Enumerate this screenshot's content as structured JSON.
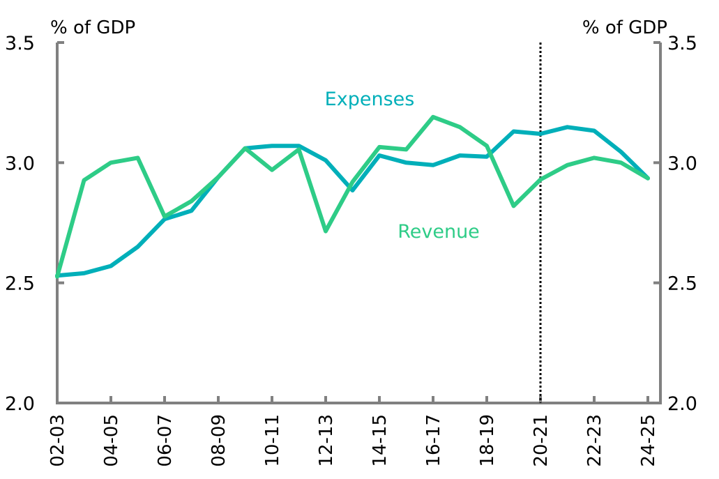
{
  "chart_data": {
    "type": "line",
    "title": "",
    "xlabel": "",
    "ylabel": "% of GDP",
    "ylabel_left": "% of GDP",
    "ylabel_right": "% of GDP",
    "ylim": [
      2.0,
      3.5
    ],
    "yticks": [
      2.0,
      2.5,
      3.0,
      3.5
    ],
    "ytick_labels": [
      "2.0",
      "2.5",
      "3.0",
      "3.5"
    ],
    "grid": false,
    "legend": "inline labels",
    "x": [
      "02-03",
      "03-04",
      "04-05",
      "05-06",
      "06-07",
      "07-08",
      "08-09",
      "09-10",
      "10-11",
      "11-12",
      "12-13",
      "13-14",
      "14-15",
      "15-16",
      "16-17",
      "17-18",
      "18-19",
      "19-20",
      "20-21",
      "21-22",
      "22-23",
      "23-24",
      "24-25"
    ],
    "xtick_labels": [
      "02-03",
      "04-05",
      "06-07",
      "08-09",
      "10-11",
      "12-13",
      "14-15",
      "16-17",
      "18-19",
      "20-21",
      "22-23",
      "24-25"
    ],
    "series": [
      {
        "name": "Expenses",
        "color": "#00AFB9",
        "values": [
          2.53,
          2.54,
          2.57,
          2.65,
          2.765,
          2.8,
          2.94,
          3.06,
          3.07,
          3.07,
          3.01,
          2.885,
          3.03,
          3.0,
          2.99,
          3.03,
          3.025,
          3.13,
          3.12,
          3.148,
          3.133,
          3.045,
          2.935
        ]
      },
      {
        "name": "Revenue",
        "color": "#2ECC87",
        "values": [
          2.526,
          2.927,
          3.0,
          3.02,
          2.776,
          2.84,
          2.94,
          3.06,
          2.97,
          3.055,
          2.715,
          2.92,
          3.065,
          3.055,
          3.19,
          3.148,
          3.07,
          2.82,
          2.93,
          2.99,
          3.02,
          3.0,
          2.935
        ]
      }
    ],
    "annotations": [
      {
        "type": "vertical-dotted-line",
        "at": "20-21"
      }
    ],
    "series_labels": [
      {
        "text": "Expenses",
        "series": "Expenses"
      },
      {
        "text": "Revenue",
        "series": "Revenue"
      }
    ],
    "axis_color": "#808080"
  }
}
